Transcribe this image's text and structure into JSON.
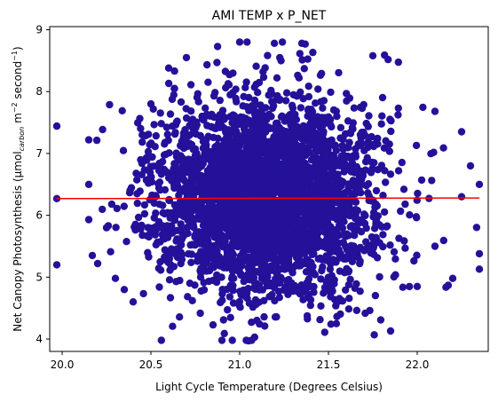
{
  "chart_data": {
    "type": "scatter",
    "title": "AMI TEMP x P_NET",
    "xlabel": "Light Cycle Temperature (Degrees Celsius)",
    "ylabel": {
      "prefix": "Net Canopy Photosynthesis (μmol",
      "subscript": "carbon",
      "mid1": " m",
      "sup1": "−2",
      "mid2": " second",
      "sup2": "−1",
      "suffix": ")"
    },
    "xlim": [
      19.93,
      22.4
    ],
    "ylim": [
      3.8,
      9.05
    ],
    "xticks": [
      "20.0",
      "20.5",
      "21.0",
      "21.5",
      "22.0"
    ],
    "yticks": [
      "4",
      "5",
      "6",
      "7",
      "8",
      "9"
    ],
    "grid": false,
    "colors": {
      "points": "#24119a",
      "fit_line": "#ff0000"
    },
    "distribution": {
      "x_mean": 21.15,
      "x_sd": 0.3,
      "x_range": [
        19.97,
        22.35
      ],
      "y_mean": 6.3,
      "y_sd": 0.78,
      "y_range": [
        3.98,
        8.8
      ]
    },
    "regression_line": {
      "x": [
        19.97,
        22.35
      ],
      "y": [
        6.27,
        6.28
      ]
    },
    "outliers": [
      [
        19.97,
        6.27
      ],
      [
        19.97,
        5.2
      ],
      [
        20.15,
        7.22
      ],
      [
        20.15,
        6.5
      ],
      [
        20.15,
        5.93
      ],
      [
        20.17,
        5.35
      ],
      [
        20.2,
        5.22
      ],
      [
        20.3,
        4.98
      ],
      [
        20.35,
        4.8
      ],
      [
        20.5,
        7.8
      ],
      [
        20.6,
        8.38
      ],
      [
        20.7,
        8.55
      ],
      [
        20.9,
        3.98
      ],
      [
        21.05,
        3.97
      ],
      [
        21.35,
        8.78
      ],
      [
        21.85,
        4.13
      ],
      [
        22.1,
        7.68
      ],
      [
        22.2,
        4.98
      ],
      [
        22.25,
        6.3
      ],
      [
        22.25,
        7.35
      ],
      [
        22.35,
        6.5
      ],
      [
        22.35,
        5.38
      ],
      [
        22.35,
        5.13
      ],
      [
        22.3,
        6.8
      ],
      [
        21.75,
        8.58
      ],
      [
        21.0,
        8.8
      ],
      [
        22.1,
        5.5
      ],
      [
        20.25,
        5.8
      ],
      [
        20.4,
        4.6
      ],
      [
        22.0,
        4.85
      ]
    ]
  }
}
